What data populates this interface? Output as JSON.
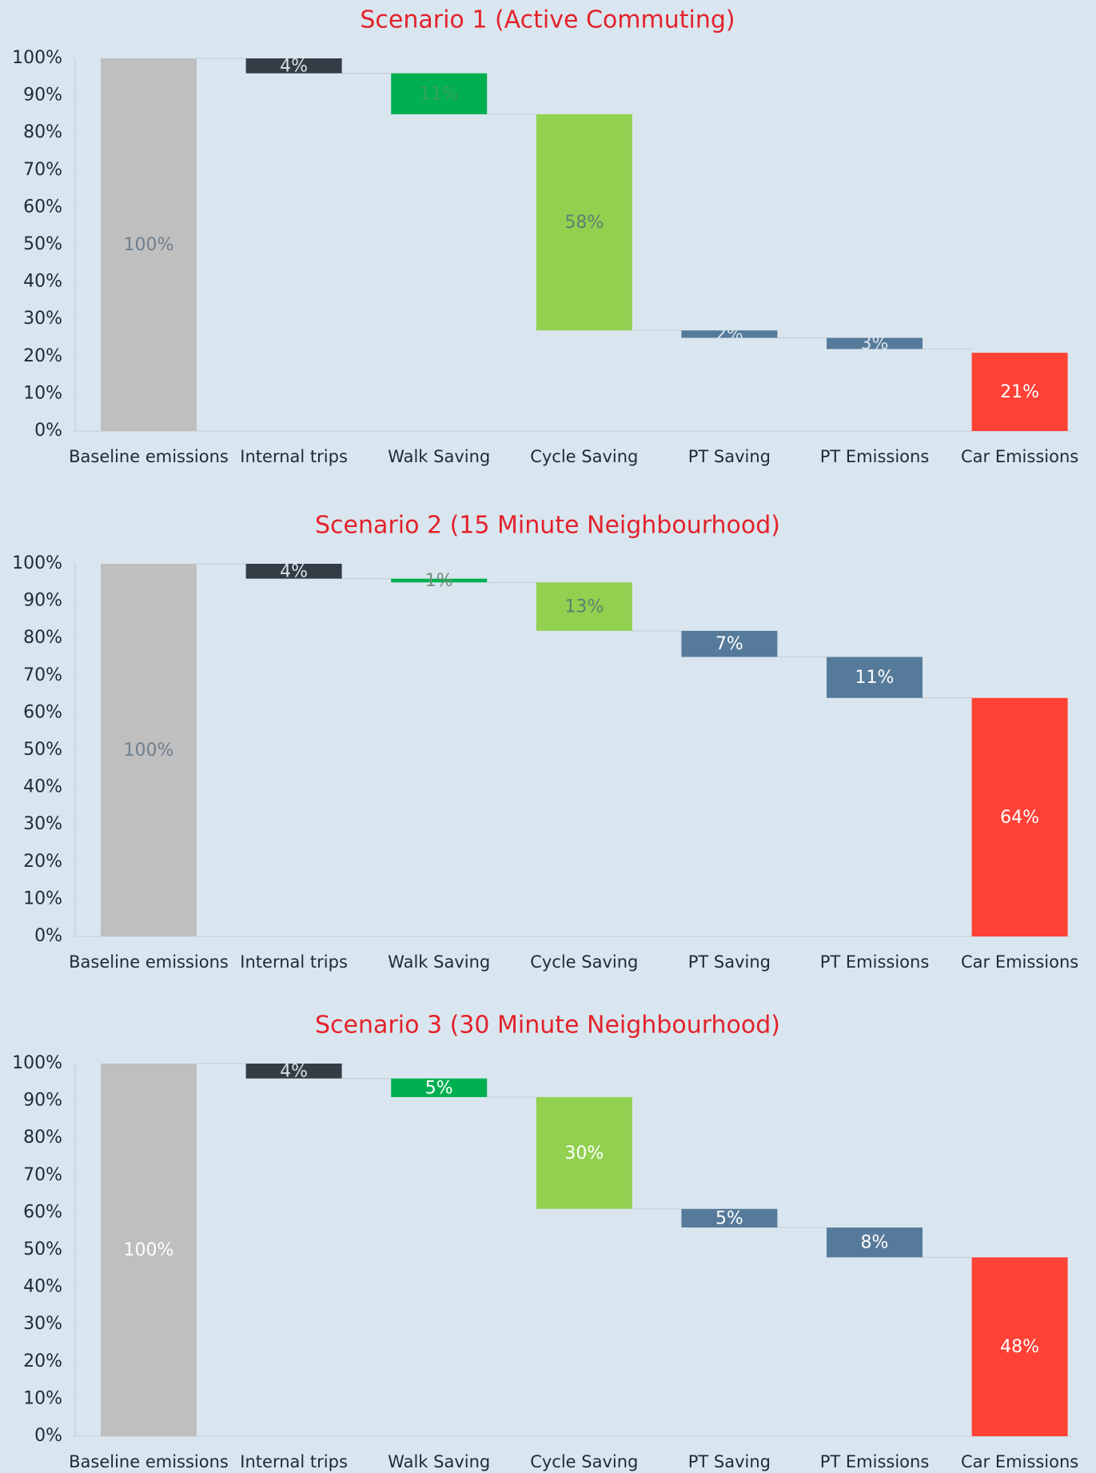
{
  "chart_data": [
    {
      "type": "waterfall",
      "title": "Scenario 1 (Active Commuting)",
      "categories": [
        "Baseline emissions",
        "Internal trips",
        "Walk Saving",
        "Cycle Saving",
        "PT Saving",
        "PT Emissions",
        "Car Emissions"
      ],
      "measure": [
        "total",
        "decrease",
        "decrease",
        "decrease",
        "decrease",
        "decrease",
        "total"
      ],
      "values": [
        100,
        4,
        11,
        58,
        2,
        3,
        21
      ],
      "value_labels": [
        "100%",
        "4%",
        "11%",
        "58%",
        "2%",
        "3%",
        "21%"
      ],
      "colors": [
        "#bfbfbf",
        "#343c45",
        "#00b050",
        "#92d050",
        "#567a9a",
        "#567a9a",
        "#ff4136"
      ],
      "label_colors": [
        "#6f7f8f",
        "#d9e3ea",
        "#3aa060",
        "#5f7f70",
        "#d9e3ea",
        "#d9e3ea",
        "#ffffff"
      ],
      "ylim": [
        0,
        100
      ],
      "yticks": [
        {
          "value": 0,
          "label": "0%"
        },
        {
          "value": 10,
          "label": "10%"
        },
        {
          "value": 20,
          "label": "20%"
        },
        {
          "value": 30,
          "label": "30%"
        },
        {
          "value": 40,
          "label": "40%"
        },
        {
          "value": 50,
          "label": "50%"
        },
        {
          "value": 60,
          "label": "60%"
        },
        {
          "value": 70,
          "label": "70%"
        },
        {
          "value": 80,
          "label": "80%"
        },
        {
          "value": 90,
          "label": "90%"
        },
        {
          "value": 100,
          "label": "100%"
        }
      ]
    },
    {
      "type": "waterfall",
      "title": "Scenario 2 (15 Minute Neighbourhood)",
      "categories": [
        "Baseline emissions",
        "Internal trips",
        "Walk Saving",
        "Cycle Saving",
        "PT Saving",
        "PT Emissions",
        "Car Emissions"
      ],
      "measure": [
        "total",
        "decrease",
        "decrease",
        "decrease",
        "decrease",
        "decrease",
        "total"
      ],
      "values": [
        100,
        4,
        1,
        13,
        7,
        11,
        64
      ],
      "value_labels": [
        "100%",
        "4%",
        "1%",
        "13%",
        "7%",
        "11%",
        "64%"
      ],
      "colors": [
        "#bfbfbf",
        "#343c45",
        "#00b050",
        "#92d050",
        "#567a9a",
        "#567a9a",
        "#ff4136"
      ],
      "label_colors": [
        "#6f7f8f",
        "#d9e3ea",
        "#6f8f7f",
        "#5f7f70",
        "#ffffff",
        "#ffffff",
        "#ffffff"
      ],
      "ylim": [
        0,
        100
      ],
      "yticks": [
        {
          "value": 0,
          "label": "0%"
        },
        {
          "value": 10,
          "label": "10%"
        },
        {
          "value": 20,
          "label": "20%"
        },
        {
          "value": 30,
          "label": "30%"
        },
        {
          "value": 40,
          "label": "40%"
        },
        {
          "value": 50,
          "label": "50%"
        },
        {
          "value": 60,
          "label": "60%"
        },
        {
          "value": 70,
          "label": "70%"
        },
        {
          "value": 80,
          "label": "80%"
        },
        {
          "value": 90,
          "label": "90%"
        },
        {
          "value": 100,
          "label": "100%"
        }
      ]
    },
    {
      "type": "waterfall",
      "title": "Scenario 3 (30 Minute Neighbourhood)",
      "categories": [
        "Baseline emissions",
        "Internal trips",
        "Walk Saving",
        "Cycle Saving",
        "PT Saving",
        "PT Emissions",
        "Car Emissions"
      ],
      "measure": [
        "total",
        "decrease",
        "decrease",
        "decrease",
        "decrease",
        "decrease",
        "total"
      ],
      "values": [
        100,
        4,
        5,
        30,
        5,
        8,
        48
      ],
      "value_labels": [
        "100%",
        "4%",
        "5%",
        "30%",
        "5%",
        "8%",
        "48%"
      ],
      "colors": [
        "#bfbfbf",
        "#343c45",
        "#00b050",
        "#92d050",
        "#567a9a",
        "#567a9a",
        "#ff4136"
      ],
      "label_colors": [
        "#ffffff",
        "#d9e3ea",
        "#ffffff",
        "#ffffff",
        "#ffffff",
        "#ffffff",
        "#ffffff"
      ],
      "ylim": [
        0,
        100
      ],
      "yticks": [
        {
          "value": 0,
          "label": "0%"
        },
        {
          "value": 10,
          "label": "10%"
        },
        {
          "value": 20,
          "label": "20%"
        },
        {
          "value": 30,
          "label": "30%"
        },
        {
          "value": 40,
          "label": "40%"
        },
        {
          "value": 50,
          "label": "50%"
        },
        {
          "value": 60,
          "label": "60%"
        },
        {
          "value": 70,
          "label": "70%"
        },
        {
          "value": 80,
          "label": "80%"
        },
        {
          "value": 90,
          "label": "90%"
        },
        {
          "value": 100,
          "label": "100%"
        }
      ]
    }
  ]
}
